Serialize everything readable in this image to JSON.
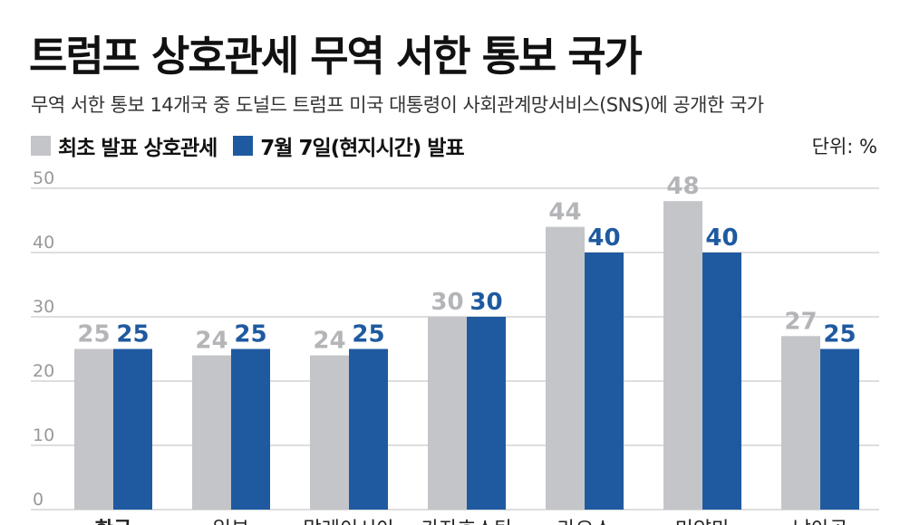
{
  "header": {
    "title": "트럼프 상호관세 무역 서한 통보 국가",
    "subtitle": "무역 서한 통보 14개국 중 도널드 트럼프 미국 대통령이 사회관계망서비스(SNS)에 공개한 국가",
    "unit": "단위: %"
  },
  "colors": {
    "initial": "#c4c5c8",
    "revised": "#1f5aa0",
    "initial_label": "#b4b5b8",
    "revised_label": "#1f5aa0",
    "grid": "#bdbdbd",
    "tick": "#999999"
  },
  "chart_data": {
    "type": "bar",
    "categories": [
      "한국",
      "일본",
      "말레이시아",
      "카자흐스탄",
      "라오스",
      "미얀마",
      "남아공"
    ],
    "series": [
      {
        "name": "최초 발표 상호관세",
        "values": [
          25,
          24,
          24,
          30,
          44,
          48,
          27
        ]
      },
      {
        "name": "7월 7일(현지시간) 발표",
        "values": [
          25,
          25,
          25,
          30,
          40,
          40,
          25
        ]
      }
    ],
    "yticks": [
      0,
      10,
      20,
      30,
      40,
      50
    ],
    "ylim": [
      0,
      50
    ],
    "grid": true,
    "legend": "top-left"
  }
}
